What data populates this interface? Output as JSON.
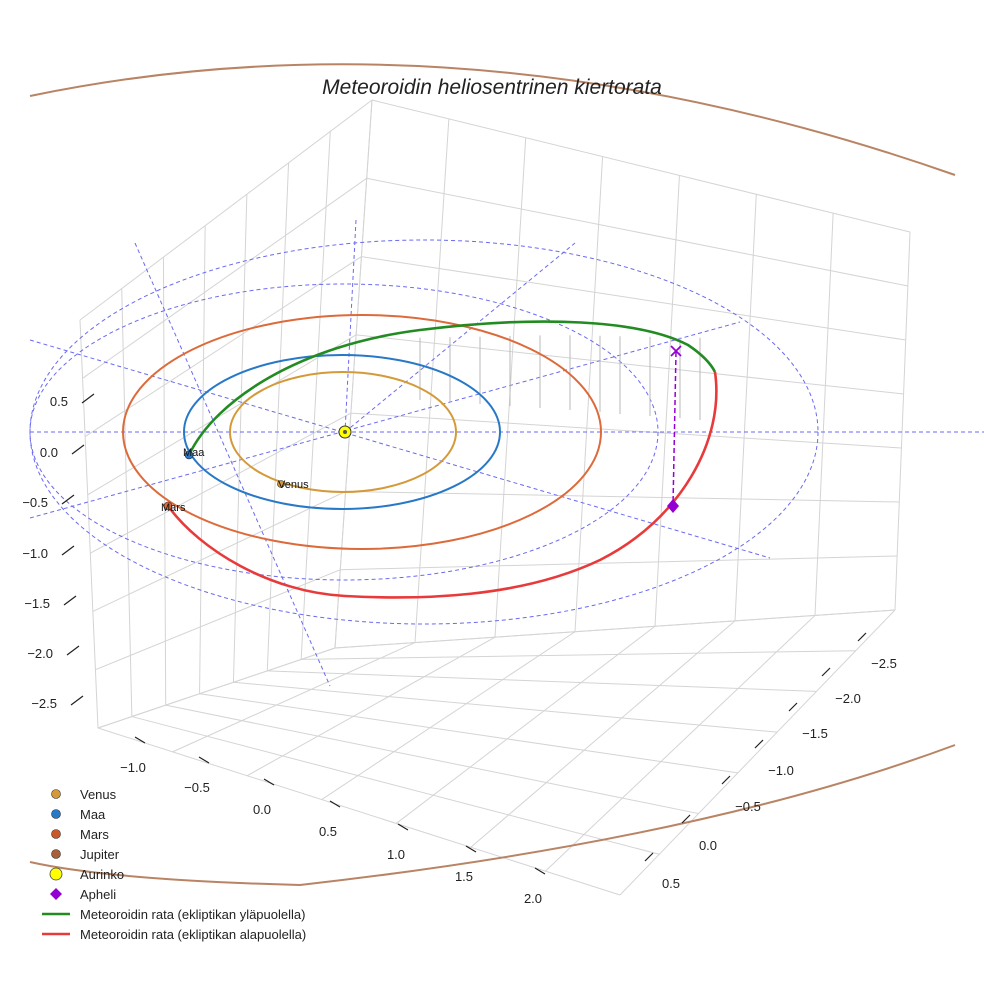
{
  "chart_data": {
    "type": "3d-line",
    "title": "Meteoroidin heliosentrinen kiertorata",
    "x_ticks": [
      "−1.0",
      "−0.5",
      "0.0",
      "0.5",
      "1.0",
      "1.5",
      "2.0"
    ],
    "y_ticks": [
      "−2.5",
      "−2.0",
      "−1.5",
      "−1.0",
      "−0.5",
      "0.0",
      "0.5"
    ],
    "z_ticks": [
      "0.5",
      "0.0",
      "−0.5",
      "−1.0",
      "−1.5",
      "−2.0",
      "−2.5"
    ],
    "planets": [
      {
        "name": "Venus",
        "semi_major_axis_au": 0.72,
        "color": "#d49a3a",
        "label": "Venus"
      },
      {
        "name": "Maa",
        "semi_major_axis_au": 1.0,
        "color": "#2878c8",
        "label": "Maa"
      },
      {
        "name": "Mars",
        "semi_major_axis_au": 1.52,
        "color": "#dd6a3a",
        "label": "Mars"
      },
      {
        "name": "Jupiter",
        "semi_major_axis_au": 5.2,
        "color": "#b88464",
        "label": ""
      }
    ],
    "sun": {
      "name": "Aurinko",
      "color": "#ffff00",
      "x": 0,
      "y": 0,
      "z": 0
    },
    "aphelion": {
      "name": "Apheli",
      "color": "#9400d3"
    },
    "meteoroid_orbit": {
      "above_ecliptic": {
        "name": "Meteoroidin rata (ekliptikan yläpuolella)",
        "color": "#228b22"
      },
      "below_ecliptic": {
        "name": "Meteoroidin rata (ekliptikan alapuolella)",
        "color": "#e83a3a"
      }
    },
    "reference_circles_au": [
      2,
      3
    ],
    "legend": [
      {
        "label": "Venus",
        "kind": "dot",
        "color": "#d49a3a"
      },
      {
        "label": "Maa",
        "kind": "dot",
        "color": "#2878c8"
      },
      {
        "label": "Mars",
        "kind": "dot",
        "color": "#c85a2a"
      },
      {
        "label": "Jupiter",
        "kind": "dot",
        "color": "#a8603a"
      },
      {
        "label": "Aurinko",
        "kind": "sun",
        "color": "#ffff00"
      },
      {
        "label": "Apheli",
        "kind": "diamond",
        "color": "#9400d3"
      },
      {
        "label": "Meteoroidin rata (ekliptikan yläpuolella)",
        "kind": "line",
        "color": "#228b22"
      },
      {
        "label": "Meteoroidin rata (ekliptikan alapuolella)",
        "kind": "line",
        "color": "#e83a3a"
      }
    ],
    "legend_position": "bottom-left"
  }
}
